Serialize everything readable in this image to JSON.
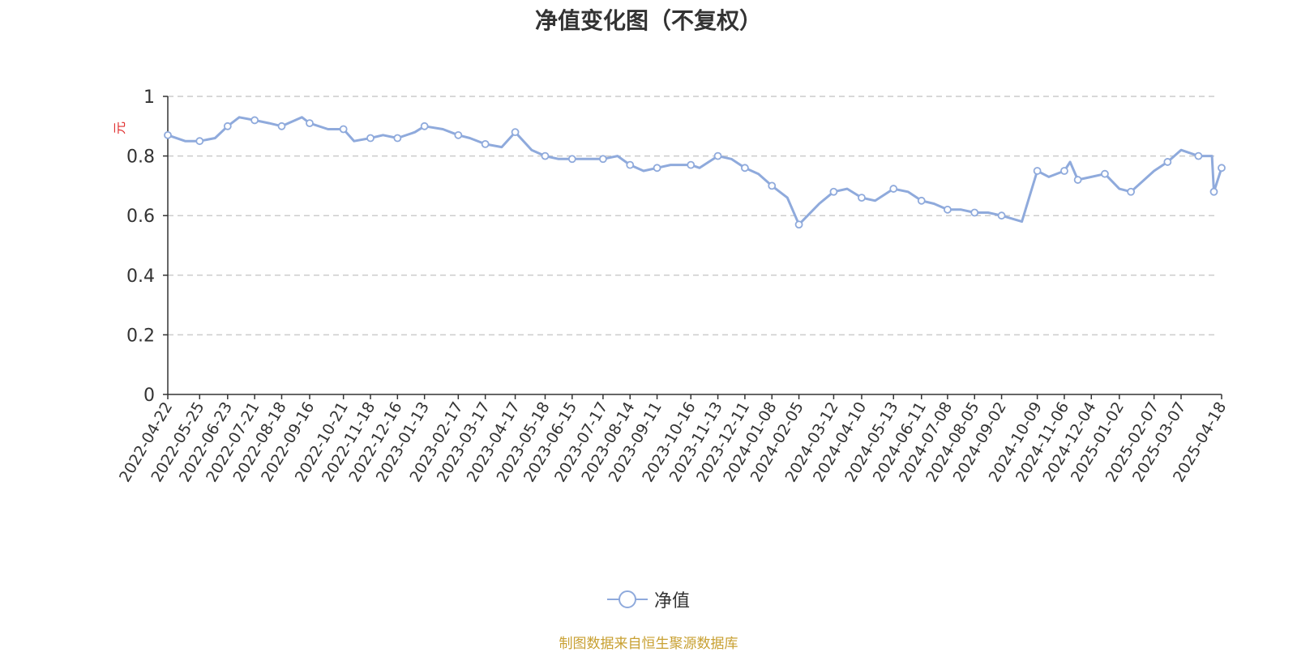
{
  "chart_title": "净值变化图（不复权）",
  "chart_data": {
    "type": "line",
    "title": "净值变化图（不复权）",
    "ylabel": "元",
    "xlabel": "",
    "ylim": [
      0,
      1
    ],
    "yticks": [
      "0",
      "0.2",
      "0.4",
      "0.6",
      "0.8",
      "1"
    ],
    "grid": true,
    "legend_position": "bottom-center",
    "x_tick_labels": [
      "2022-04-22",
      "2022-05-25",
      "2022-06-23",
      "2022-07-21",
      "2022-08-18",
      "2022-09-16",
      "2022-10-21",
      "2022-11-18",
      "2022-12-16",
      "2023-01-13",
      "2023-02-17",
      "2023-03-17",
      "2023-04-17",
      "2023-05-18",
      "2023-06-15",
      "2023-07-17",
      "2023-08-14",
      "2023-09-11",
      "2023-10-16",
      "2023-11-13",
      "2023-12-11",
      "2024-01-08",
      "2024-02-05",
      "2024-03-12",
      "2024-04-10",
      "2024-05-13",
      "2024-06-11",
      "2024-07-08",
      "2024-08-05",
      "2024-09-02",
      "2024-10-09",
      "2024-11-06",
      "2024-12-04",
      "2025-01-02",
      "2025-02-07",
      "2025-03-07",
      "2025-04-18"
    ],
    "series": [
      {
        "name": "净值",
        "color": "#8faadc",
        "x": [
          "2022-04-22",
          "2022-05-10",
          "2022-05-25",
          "2022-06-10",
          "2022-06-23",
          "2022-07-05",
          "2022-07-21",
          "2022-08-05",
          "2022-08-18",
          "2022-09-08",
          "2022-09-16",
          "2022-10-05",
          "2022-10-21",
          "2022-11-01",
          "2022-11-18",
          "2022-12-01",
          "2022-12-16",
          "2023-01-03",
          "2023-01-13",
          "2023-02-01",
          "2023-02-17",
          "2023-03-01",
          "2023-03-17",
          "2023-04-03",
          "2023-04-17",
          "2023-05-04",
          "2023-05-18",
          "2023-06-01",
          "2023-06-15",
          "2023-07-03",
          "2023-07-17",
          "2023-08-01",
          "2023-08-14",
          "2023-08-28",
          "2023-09-11",
          "2023-09-25",
          "2023-10-16",
          "2023-10-25",
          "2023-11-13",
          "2023-11-27",
          "2023-12-11",
          "2023-12-25",
          "2024-01-08",
          "2024-01-24",
          "2024-02-05",
          "2024-02-26",
          "2024-03-12",
          "2024-03-26",
          "2024-04-10",
          "2024-04-24",
          "2024-05-13",
          "2024-05-28",
          "2024-06-11",
          "2024-06-24",
          "2024-07-08",
          "2024-07-22",
          "2024-08-05",
          "2024-08-19",
          "2024-09-02",
          "2024-09-23",
          "2024-10-09",
          "2024-10-21",
          "2024-11-06",
          "2024-11-12",
          "2024-11-20",
          "2024-12-04",
          "2024-12-18",
          "2025-01-02",
          "2025-01-14",
          "2025-02-07",
          "2025-02-21",
          "2025-03-07",
          "2025-03-25",
          "2025-04-08",
          "2025-04-10",
          "2025-04-18"
        ],
        "values": [
          0.87,
          0.85,
          0.85,
          0.86,
          0.9,
          0.93,
          0.92,
          0.91,
          0.9,
          0.93,
          0.91,
          0.89,
          0.89,
          0.85,
          0.86,
          0.87,
          0.86,
          0.88,
          0.9,
          0.89,
          0.87,
          0.86,
          0.84,
          0.83,
          0.88,
          0.82,
          0.8,
          0.79,
          0.79,
          0.79,
          0.79,
          0.8,
          0.77,
          0.75,
          0.76,
          0.77,
          0.77,
          0.76,
          0.8,
          0.79,
          0.76,
          0.74,
          0.7,
          0.66,
          0.57,
          0.64,
          0.68,
          0.69,
          0.66,
          0.65,
          0.69,
          0.68,
          0.65,
          0.64,
          0.62,
          0.62,
          0.61,
          0.61,
          0.6,
          0.58,
          0.75,
          0.73,
          0.75,
          0.78,
          0.72,
          0.73,
          0.74,
          0.69,
          0.68,
          0.75,
          0.78,
          0.82,
          0.8,
          0.8,
          0.68,
          0.76
        ]
      }
    ]
  },
  "legend": {
    "label": "净值"
  },
  "source": {
    "text": "制图数据来自恒生聚源数据库",
    "color": "#c8a032"
  },
  "colors": {
    "axis": "#333333",
    "grid": "#cccccc",
    "ylabel": "#e03030",
    "line": "#8faadc"
  }
}
